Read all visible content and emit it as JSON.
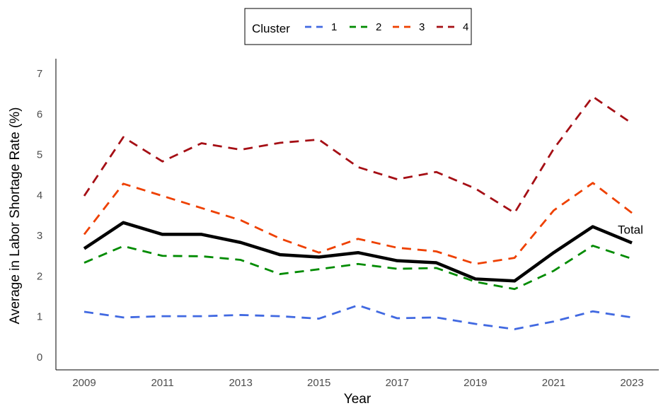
{
  "chart_data": {
    "type": "line",
    "xlabel": "Year",
    "ylabel": "Average in Labor Shortage Rate (%)",
    "xlim": [
      2009,
      2023
    ],
    "ylim": [
      0,
      7
    ],
    "x_ticks": [
      2009,
      2011,
      2013,
      2015,
      2017,
      2019,
      2021,
      2023
    ],
    "y_ticks": [
      0,
      1,
      2,
      3,
      4,
      5,
      6,
      7
    ],
    "grid": false,
    "legend": {
      "title": "Cluster",
      "position": "top"
    },
    "x": [
      2009,
      2010,
      2011,
      2012,
      2013,
      2014,
      2015,
      2016,
      2017,
      2018,
      2019,
      2020,
      2021,
      2022,
      2023
    ],
    "series": [
      {
        "name": "1",
        "color": "#4169E1",
        "style": "dashed",
        "values": [
          1.12,
          0.98,
          1.01,
          1.01,
          1.04,
          1.01,
          0.95,
          1.28,
          0.96,
          0.98,
          0.82,
          0.69,
          0.88,
          1.13,
          0.98
        ]
      },
      {
        "name": "2",
        "color": "#008B00",
        "style": "dashed",
        "values": [
          2.33,
          2.74,
          2.5,
          2.49,
          2.4,
          2.05,
          2.17,
          2.3,
          2.18,
          2.2,
          1.86,
          1.68,
          2.13,
          2.75,
          2.43
        ]
      },
      {
        "name": "3",
        "color": "#EE4000",
        "style": "dashed",
        "values": [
          3.03,
          4.28,
          3.98,
          3.68,
          3.38,
          2.93,
          2.58,
          2.92,
          2.7,
          2.61,
          2.3,
          2.45,
          3.62,
          4.3,
          3.56
        ]
      },
      {
        "name": "4",
        "color": "#A50F15",
        "style": "dashed",
        "values": [
          3.98,
          5.43,
          4.83,
          5.28,
          5.12,
          5.29,
          5.37,
          4.69,
          4.39,
          4.57,
          4.16,
          3.56,
          5.14,
          6.43,
          5.77
        ]
      },
      {
        "name": "Total",
        "color": "#000000",
        "style": "solid",
        "label": "Total",
        "values": [
          2.68,
          3.32,
          3.03,
          3.03,
          2.83,
          2.53,
          2.47,
          2.58,
          2.38,
          2.33,
          1.93,
          1.88,
          2.58,
          3.22,
          2.82
        ]
      }
    ]
  }
}
